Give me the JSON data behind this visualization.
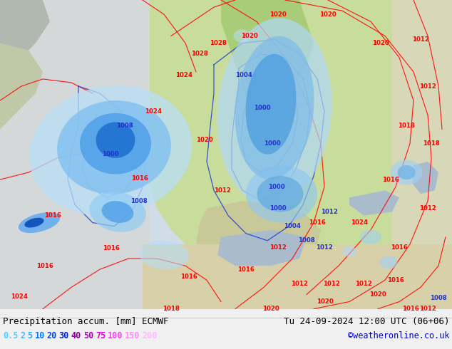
{
  "title_left": "Precipitation accum. [mm] ECMWF",
  "title_right": "Tu 24-09-2024 12:00 UTC (06+06)",
  "credit": "©weatheronline.co.uk",
  "legend_values": [
    "0.5",
    "2",
    "5",
    "10",
    "20",
    "30",
    "40",
    "50",
    "75",
    "100",
    "150",
    "200"
  ],
  "legend_text_colors": [
    "#55ccff",
    "#44bbff",
    "#22aaff",
    "#0077ff",
    "#0044ee",
    "#0022cc",
    "#880099",
    "#aa00bb",
    "#dd00dd",
    "#ee44ee",
    "#ff88ff",
    "#ffbbff"
  ],
  "bg_color": "#f0f0f0",
  "ocean_color": "#d8e8f0",
  "land_green_color": "#b8d898",
  "land_light_color": "#e8e8d8",
  "title_fontsize": 9,
  "legend_fontsize": 8.5,
  "credit_color": "#0000cc",
  "title_color": "#000000",
  "figsize": [
    6.34,
    4.9
  ],
  "dpi": 100,
  "red_labels": [
    [
      27,
      413,
      "1024"
    ],
    [
      196,
      248,
      "1016"
    ],
    [
      287,
      195,
      "1020"
    ],
    [
      312,
      265,
      "1012"
    ],
    [
      156,
      346,
      "1016"
    ],
    [
      74,
      300,
      "1016"
    ],
    [
      63,
      370,
      "1016"
    ],
    [
      380,
      430,
      "1020"
    ],
    [
      456,
      420,
      "1020"
    ],
    [
      530,
      410,
      "1020"
    ],
    [
      560,
      345,
      "1016"
    ],
    [
      600,
      290,
      "1012"
    ],
    [
      605,
      200,
      "1018"
    ],
    [
      600,
      120,
      "1012"
    ],
    [
      590,
      55,
      "1012"
    ],
    [
      534,
      60,
      "1020"
    ],
    [
      460,
      20,
      "1020"
    ],
    [
      390,
      20,
      "1020"
    ],
    [
      350,
      50,
      "1020"
    ],
    [
      306,
      60,
      "1028"
    ],
    [
      280,
      75,
      "1028"
    ],
    [
      258,
      105,
      "1024"
    ],
    [
      215,
      155,
      "1024"
    ],
    [
      600,
      430,
      "1012"
    ],
    [
      576,
      430,
      "1016"
    ],
    [
      504,
      310,
      "1024"
    ],
    [
      570,
      175,
      "1018"
    ],
    [
      548,
      250,
      "1016"
    ],
    [
      445,
      310,
      "1016"
    ],
    [
      390,
      345,
      "1012"
    ],
    [
      345,
      375,
      "1016"
    ],
    [
      265,
      385,
      "1016"
    ],
    [
      240,
      430,
      "1018"
    ],
    [
      465,
      395,
      "1012"
    ],
    [
      420,
      395,
      "1012"
    ],
    [
      510,
      395,
      "1012"
    ],
    [
      555,
      390,
      "1016"
    ]
  ],
  "blue_labels": [
    [
      175,
      175,
      "1008"
    ],
    [
      155,
      215,
      "1000"
    ],
    [
      195,
      280,
      "1008"
    ],
    [
      342,
      105,
      "1004"
    ],
    [
      368,
      150,
      "1000"
    ],
    [
      382,
      200,
      "1000"
    ],
    [
      388,
      260,
      "1000"
    ],
    [
      390,
      290,
      "1000"
    ],
    [
      410,
      315,
      "1004"
    ],
    [
      430,
      335,
      "1008"
    ],
    [
      455,
      345,
      "1012"
    ],
    [
      462,
      295,
      "1012"
    ],
    [
      615,
      415,
      "1008"
    ]
  ]
}
